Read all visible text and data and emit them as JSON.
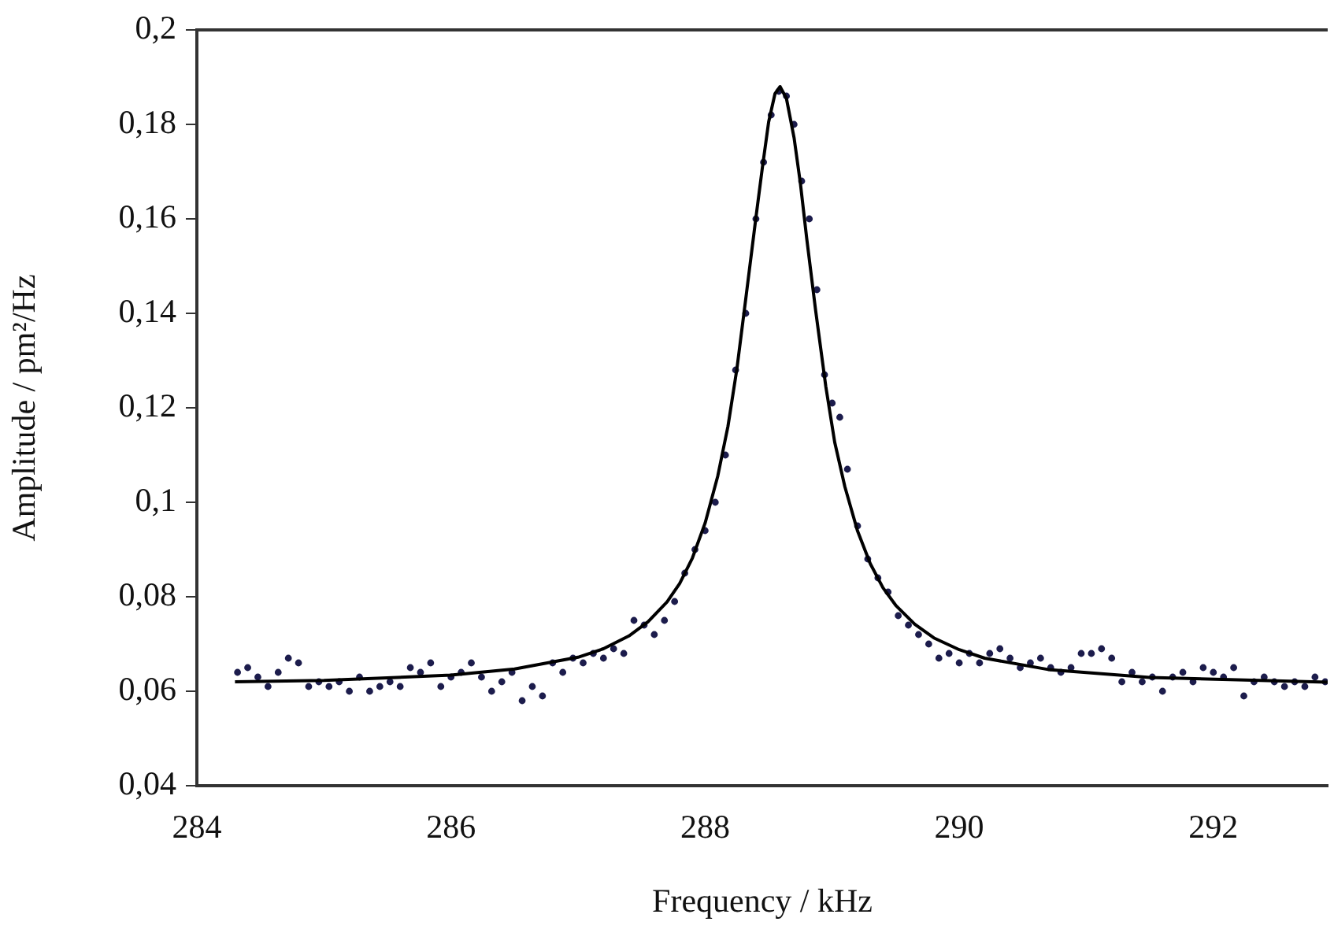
{
  "chart_data": {
    "type": "scatter",
    "xlabel": "Frequency / kHz",
    "ylabel": "Amplitude / pm²/Hz",
    "xlim": [
      284,
      292.9
    ],
    "xticks": [
      284,
      286,
      288,
      290,
      292
    ],
    "ylim": [
      0.04,
      0.2
    ],
    "yticks": [
      {
        "value": 0.04,
        "label": "0,04"
      },
      {
        "value": 0.06,
        "label": "0,06"
      },
      {
        "value": 0.08,
        "label": "0,08"
      },
      {
        "value": 0.1,
        "label": "0,1"
      },
      {
        "value": 0.12,
        "label": "0,12"
      },
      {
        "value": 0.14,
        "label": "0,14"
      },
      {
        "value": 0.16,
        "label": "0,16"
      },
      {
        "value": 0.18,
        "label": "0,18"
      },
      {
        "value": 0.2,
        "label": "0,2"
      }
    ],
    "grid": false,
    "legend": false,
    "marker": "circle",
    "series": [
      {
        "color": "#1c1c4c",
        "x": [
          284.32,
          284.4,
          284.48,
          284.56,
          284.64,
          284.72,
          284.8,
          284.88,
          284.96,
          285.04,
          285.12,
          285.2,
          285.28,
          285.36,
          285.44,
          285.52,
          285.6,
          285.68,
          285.76,
          285.84,
          285.92,
          286.0,
          286.08,
          286.16,
          286.24,
          286.32,
          286.4,
          286.48,
          286.56,
          286.64,
          286.72,
          286.8,
          286.88,
          286.96,
          287.04,
          287.12,
          287.2,
          287.28,
          287.36,
          287.44,
          287.52,
          287.6,
          287.68,
          287.76,
          287.84,
          287.92,
          288.0,
          288.08,
          288.16,
          288.24,
          288.32,
          288.4,
          288.46,
          288.52,
          288.58,
          288.64,
          288.7,
          288.76,
          288.82,
          288.88,
          288.94,
          289.0,
          289.06,
          289.12,
          289.2,
          289.28,
          289.36,
          289.44,
          289.52,
          289.6,
          289.68,
          289.76,
          289.84,
          289.92,
          290.0,
          290.08,
          290.16,
          290.24,
          290.32,
          290.4,
          290.48,
          290.56,
          290.64,
          290.72,
          290.8,
          290.88,
          290.96,
          291.04,
          291.12,
          291.2,
          291.28,
          291.36,
          291.44,
          291.52,
          291.6,
          291.68,
          291.76,
          291.84,
          291.92,
          292.0,
          292.08,
          292.16,
          292.24,
          292.32,
          292.4,
          292.48,
          292.56,
          292.64,
          292.72,
          292.8,
          292.88
        ],
        "values": [
          0.064,
          0.065,
          0.063,
          0.061,
          0.064,
          0.067,
          0.066,
          0.061,
          0.062,
          0.061,
          0.062,
          0.06,
          0.063,
          0.06,
          0.061,
          0.062,
          0.061,
          0.065,
          0.064,
          0.066,
          0.061,
          0.063,
          0.064,
          0.066,
          0.063,
          0.06,
          0.062,
          0.064,
          0.058,
          0.061,
          0.059,
          0.066,
          0.064,
          0.067,
          0.066,
          0.068,
          0.067,
          0.069,
          0.068,
          0.075,
          0.074,
          0.072,
          0.075,
          0.079,
          0.085,
          0.09,
          0.094,
          0.1,
          0.11,
          0.128,
          0.14,
          0.16,
          0.172,
          0.182,
          0.187,
          0.186,
          0.18,
          0.168,
          0.16,
          0.145,
          0.127,
          0.121,
          0.118,
          0.107,
          0.095,
          0.088,
          0.084,
          0.081,
          0.076,
          0.074,
          0.072,
          0.07,
          0.067,
          0.068,
          0.066,
          0.068,
          0.066,
          0.068,
          0.069,
          0.067,
          0.065,
          0.066,
          0.067,
          0.065,
          0.064,
          0.065,
          0.068,
          0.068,
          0.069,
          0.067,
          0.062,
          0.064,
          0.062,
          0.063,
          0.06,
          0.063,
          0.064,
          0.062,
          0.065,
          0.064,
          0.063,
          0.065,
          0.059,
          0.062,
          0.063,
          0.062,
          0.061,
          0.062,
          0.061,
          0.063,
          0.062
        ]
      },
      {
        "type": "line",
        "color": "#000000",
        "marker": "none",
        "x": [
          284.3,
          285,
          286,
          286.5,
          287,
          287.2,
          287.4,
          287.55,
          287.7,
          287.8,
          287.9,
          288,
          288.1,
          288.18,
          288.25,
          288.32,
          288.4,
          288.45,
          288.5,
          288.55,
          288.59,
          288.64,
          288.7,
          288.75,
          288.8,
          288.87,
          288.95,
          289.02,
          289.1,
          289.2,
          289.3,
          289.4,
          289.5,
          289.65,
          289.8,
          290,
          290.2,
          290.7,
          291.5,
          292.9
        ],
        "values": [
          0.062,
          0.0623,
          0.0634,
          0.0647,
          0.0672,
          0.069,
          0.0717,
          0.0747,
          0.0789,
          0.0828,
          0.0882,
          0.0956,
          0.1056,
          0.1161,
          0.1282,
          0.1431,
          0.1603,
          0.1707,
          0.1805,
          0.1865,
          0.188,
          0.1855,
          0.1772,
          0.1675,
          0.1558,
          0.1406,
          0.1245,
          0.1127,
          0.1033,
          0.0939,
          0.087,
          0.0819,
          0.0782,
          0.0742,
          0.0713,
          0.0688,
          0.067,
          0.0646,
          0.0629,
          0.0619
        ]
      }
    ]
  }
}
